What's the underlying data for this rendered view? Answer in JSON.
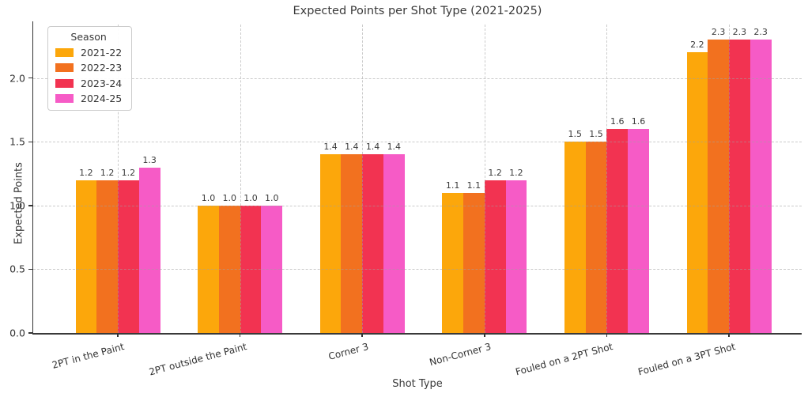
{
  "chart_data": {
    "type": "bar",
    "title": "Expected Points per Shot Type (2021-2025)",
    "xlabel": "Shot Type",
    "ylabel": "Expected Points",
    "legend_title": "Season",
    "legend_position": "upper left",
    "grid": "dashed, drawn above bars",
    "categories": [
      "2PT in the Paint",
      "2PT outside the Paint",
      "Corner 3",
      "Non-Corner 3",
      "Fouled on a 2PT Shot",
      "Fouled on a 3PT Shot"
    ],
    "series": [
      {
        "name": "2021-22",
        "color": "#FCA70B",
        "values": [
          1.2,
          1.0,
          1.4,
          1.1,
          1.5,
          2.2
        ]
      },
      {
        "name": "2022-23",
        "color": "#F2711F",
        "values": [
          1.2,
          1.0,
          1.4,
          1.1,
          1.5,
          2.3
        ]
      },
      {
        "name": "2023-24",
        "color": "#F23351",
        "values": [
          1.2,
          1.0,
          1.4,
          1.2,
          1.6,
          2.3
        ]
      },
      {
        "name": "2024-25",
        "color": "#F65BC6",
        "values": [
          1.3,
          1.0,
          1.4,
          1.2,
          1.6,
          2.3
        ]
      }
    ],
    "value_label_format": "one_decimal",
    "yticks": [
      0.0,
      0.5,
      1.0,
      1.5,
      2.0
    ],
    "ylim": [
      0,
      2.42
    ],
    "colors": {
      "spine": "#333333",
      "gridline": "#c8c8c8",
      "text": "#3a3a3a",
      "background": "#ffffff"
    }
  }
}
